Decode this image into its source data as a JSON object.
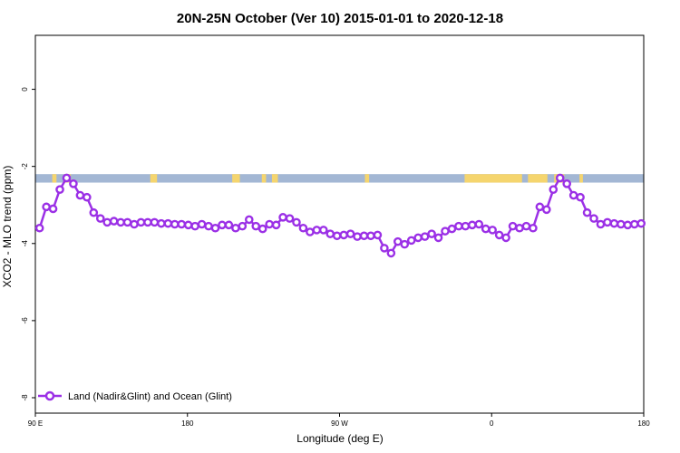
{
  "chart_data": {
    "type": "line",
    "title": "20N-25N October (Ver 10)   2015-01-01 to 2020-12-18",
    "xlabel": "Longitude (deg E)",
    "ylabel": "XCO2 - MLO trend (ppm)",
    "xlim": [
      90,
      450
    ],
    "ylim": [
      -8.4,
      1.4
    ],
    "x_ticks": [
      {
        "value": 90,
        "label": "90 E"
      },
      {
        "value": 180,
        "label": "180"
      },
      {
        "value": 270,
        "label": "90 W"
      },
      {
        "value": 360,
        "label": "0"
      },
      {
        "value": 450,
        "label": "180"
      }
    ],
    "y_ticks": [
      {
        "value": 0,
        "label": "0"
      },
      {
        "value": -2,
        "label": "-2"
      },
      {
        "value": -4,
        "label": "-4"
      },
      {
        "value": -6,
        "label": "-6"
      },
      {
        "value": -8,
        "label": "-8"
      }
    ],
    "legend_position": "bottom-left",
    "grid": false,
    "band": {
      "y_top": -2.2,
      "y_bottom": -2.42,
      "ocean_color": "#a3b7d4",
      "land_color": "#f5d56e"
    },
    "land_segments": [
      [
        100,
        102.5
      ],
      [
        107,
        111
      ],
      [
        158,
        162
      ],
      [
        206.5,
        211
      ],
      [
        224,
        226.5
      ],
      [
        230,
        233.5
      ],
      [
        285,
        287.5
      ],
      [
        344,
        378
      ],
      [
        381.5,
        393
      ],
      [
        397,
        403
      ],
      [
        412,
        414
      ],
      [
        467,
        483
      ],
      [
        496,
        500
      ]
    ],
    "series": [
      {
        "name": "Land (Nadir&Glint) and Ocean (Glint)",
        "color": "#9b30e6",
        "x": [
          92.5,
          96.5,
          100.5,
          104.5,
          108.5,
          112.5,
          116.5,
          120.5,
          124.5,
          128.5,
          132.5,
          136.5,
          140.5,
          144.5,
          148.5,
          152.5,
          156.5,
          160.5,
          164.5,
          168.5,
          172.5,
          176.5,
          180.5,
          184.5,
          188.5,
          192.5,
          196.5,
          200.5,
          204.5,
          208.5,
          212.5,
          216.5,
          220.5,
          224.5,
          228.5,
          232.5,
          236.5,
          240.5,
          244.5,
          248.5,
          252.5,
          256.5,
          260.5,
          264.5,
          268.5,
          272.5,
          276.5,
          280.5,
          284.5,
          288.5,
          292.5,
          296.5,
          300.5,
          304.5,
          308.5,
          312.5,
          316.5,
          320.5,
          324.5,
          328.5,
          332.5,
          336.5,
          340.5,
          344.5,
          348.5,
          352.5,
          356.5,
          360.5,
          364.5,
          368.5,
          372.5,
          376.5,
          380.5,
          384.5,
          388.5,
          392.5,
          396.5,
          400.5,
          404.5,
          408.5,
          412.5,
          416.5,
          420.5,
          424.5,
          428.5,
          432.5,
          436.5,
          440.5,
          444.5,
          448.5
        ],
        "values": [
          -3.6,
          -3.05,
          -3.1,
          -2.6,
          -2.3,
          -2.45,
          -2.75,
          -2.8,
          -3.2,
          -3.35,
          -3.45,
          -3.42,
          -3.45,
          -3.45,
          -3.5,
          -3.45,
          -3.45,
          -3.45,
          -3.48,
          -3.48,
          -3.5,
          -3.5,
          -3.52,
          -3.55,
          -3.5,
          -3.55,
          -3.6,
          -3.52,
          -3.52,
          -3.6,
          -3.55,
          -3.38,
          -3.55,
          -3.62,
          -3.5,
          -3.52,
          -3.32,
          -3.35,
          -3.45,
          -3.6,
          -3.7,
          -3.65,
          -3.65,
          -3.75,
          -3.8,
          -3.78,
          -3.75,
          -3.82,
          -3.8,
          -3.8,
          -3.78,
          -4.12,
          -4.25,
          -3.95,
          -4.02,
          -3.92,
          -3.85,
          -3.82,
          -3.75,
          -3.85,
          -3.68,
          -3.62,
          -3.55,
          -3.55,
          -3.52,
          -3.5,
          -3.62,
          -3.65,
          -3.78,
          -3.85,
          -3.55,
          -3.6,
          -3.55,
          -3.6,
          -3.05,
          -3.12,
          -2.6,
          -2.3,
          -2.45,
          -2.75,
          -2.8,
          -3.2,
          -3.35,
          -3.5,
          -3.45,
          -3.48,
          -3.5,
          -3.52,
          -3.5,
          -3.48
        ]
      }
    ]
  }
}
